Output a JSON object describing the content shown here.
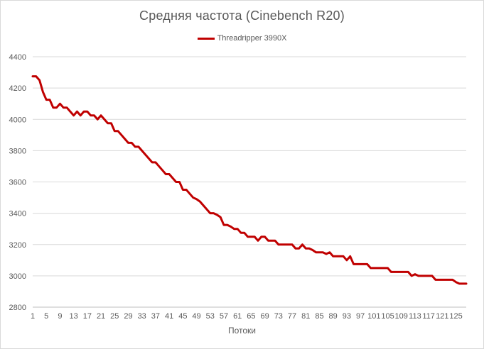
{
  "chart_data": {
    "type": "line",
    "title": "Средняя частота (Cinebench R20)",
    "xlabel": "Потоки",
    "ylabel": "",
    "ylim": [
      2800,
      4400
    ],
    "yticks": [
      2800,
      3000,
      3200,
      3400,
      3600,
      3800,
      4000,
      4200,
      4400
    ],
    "xlim": [
      1,
      128
    ],
    "xticks": [
      1,
      5,
      9,
      13,
      17,
      21,
      25,
      29,
      33,
      37,
      41,
      45,
      49,
      53,
      57,
      61,
      65,
      69,
      73,
      77,
      81,
      85,
      89,
      93,
      97,
      101,
      105,
      109,
      113,
      117,
      121,
      125
    ],
    "grid": true,
    "legend_position": "top-center",
    "series": [
      {
        "name": "Threadripper 3990X",
        "color": "#c00000",
        "points": [
          [
            1,
            4275
          ],
          [
            2,
            4275
          ],
          [
            3,
            4250
          ],
          [
            4,
            4175
          ],
          [
            5,
            4125
          ],
          [
            6,
            4125
          ],
          [
            7,
            4075
          ],
          [
            8,
            4075
          ],
          [
            9,
            4100
          ],
          [
            10,
            4075
          ],
          [
            11,
            4075
          ],
          [
            12,
            4050
          ],
          [
            13,
            4025
          ],
          [
            14,
            4050
          ],
          [
            15,
            4025
          ],
          [
            16,
            4050
          ],
          [
            17,
            4050
          ],
          [
            18,
            4025
          ],
          [
            19,
            4025
          ],
          [
            20,
            4000
          ],
          [
            21,
            4025
          ],
          [
            22,
            4000
          ],
          [
            23,
            3975
          ],
          [
            24,
            3975
          ],
          [
            25,
            3925
          ],
          [
            26,
            3925
          ],
          [
            27,
            3900
          ],
          [
            28,
            3875
          ],
          [
            29,
            3850
          ],
          [
            30,
            3850
          ],
          [
            31,
            3825
          ],
          [
            32,
            3825
          ],
          [
            33,
            3800
          ],
          [
            34,
            3775
          ],
          [
            35,
            3750
          ],
          [
            36,
            3725
          ],
          [
            37,
            3725
          ],
          [
            38,
            3700
          ],
          [
            39,
            3675
          ],
          [
            40,
            3650
          ],
          [
            41,
            3650
          ],
          [
            42,
            3625
          ],
          [
            43,
            3600
          ],
          [
            44,
            3600
          ],
          [
            45,
            3550
          ],
          [
            46,
            3550
          ],
          [
            47,
            3525
          ],
          [
            48,
            3500
          ],
          [
            49,
            3490
          ],
          [
            50,
            3475
          ],
          [
            51,
            3450
          ],
          [
            52,
            3425
          ],
          [
            53,
            3400
          ],
          [
            54,
            3400
          ],
          [
            55,
            3390
          ],
          [
            56,
            3375
          ],
          [
            57,
            3325
          ],
          [
            58,
            3325
          ],
          [
            59,
            3315
          ],
          [
            60,
            3300
          ],
          [
            61,
            3300
          ],
          [
            62,
            3275
          ],
          [
            63,
            3275
          ],
          [
            64,
            3250
          ],
          [
            65,
            3250
          ],
          [
            66,
            3250
          ],
          [
            67,
            3225
          ],
          [
            68,
            3250
          ],
          [
            69,
            3250
          ],
          [
            70,
            3225
          ],
          [
            71,
            3225
          ],
          [
            72,
            3225
          ],
          [
            73,
            3200
          ],
          [
            74,
            3200
          ],
          [
            75,
            3200
          ],
          [
            76,
            3200
          ],
          [
            77,
            3200
          ],
          [
            78,
            3175
          ],
          [
            79,
            3175
          ],
          [
            80,
            3200
          ],
          [
            81,
            3175
          ],
          [
            82,
            3175
          ],
          [
            83,
            3165
          ],
          [
            84,
            3150
          ],
          [
            85,
            3150
          ],
          [
            86,
            3150
          ],
          [
            87,
            3140
          ],
          [
            88,
            3150
          ],
          [
            89,
            3125
          ],
          [
            90,
            3125
          ],
          [
            91,
            3125
          ],
          [
            92,
            3125
          ],
          [
            93,
            3100
          ],
          [
            94,
            3125
          ],
          [
            95,
            3075
          ],
          [
            96,
            3075
          ],
          [
            97,
            3075
          ],
          [
            98,
            3075
          ],
          [
            99,
            3075
          ],
          [
            100,
            3050
          ],
          [
            101,
            3050
          ],
          [
            102,
            3050
          ],
          [
            103,
            3050
          ],
          [
            104,
            3050
          ],
          [
            105,
            3050
          ],
          [
            106,
            3025
          ],
          [
            107,
            3025
          ],
          [
            108,
            3025
          ],
          [
            109,
            3025
          ],
          [
            110,
            3025
          ],
          [
            111,
            3025
          ],
          [
            112,
            3000
          ],
          [
            113,
            3010
          ],
          [
            114,
            3000
          ],
          [
            115,
            3000
          ],
          [
            116,
            3000
          ],
          [
            117,
            3000
          ],
          [
            118,
            3000
          ],
          [
            119,
            2975
          ],
          [
            120,
            2975
          ],
          [
            121,
            2975
          ],
          [
            122,
            2975
          ],
          [
            123,
            2975
          ],
          [
            124,
            2975
          ],
          [
            125,
            2960
          ],
          [
            126,
            2950
          ],
          [
            127,
            2950
          ],
          [
            128,
            2950
          ]
        ]
      }
    ]
  }
}
